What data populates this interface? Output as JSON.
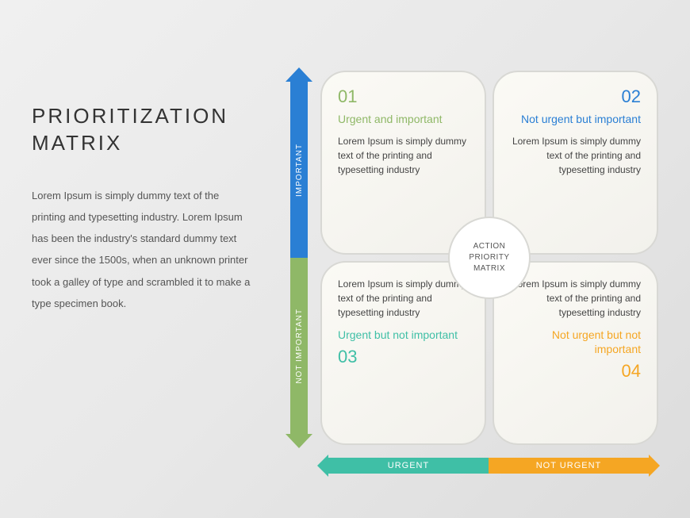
{
  "title": "PRIORITIZATION MATRIX",
  "description": "Lorem Ipsum is simply dummy text of the printing and typesetting industry. Lorem Ipsum has been the industry's standard dummy text ever since the 1500s, when an unknown printer took a galley of type and scrambled it to make a type specimen book.",
  "center_label": "ACTION PRIORITY MATRIX",
  "axes": {
    "y_top": {
      "label": "IMPORTANT",
      "color": "#2a7fd4"
    },
    "y_bottom": {
      "label": "NOT IMPORTANT",
      "color": "#8fb867"
    },
    "x_left": {
      "label": "URGENT",
      "color": "#3fbfa6"
    },
    "x_right": {
      "label": "NOT URGENT",
      "color": "#f5a623"
    }
  },
  "quadrants": [
    {
      "num": "01",
      "title": "Urgent and important",
      "body": "Lorem Ipsum is simply dummy text of the printing and typesetting industry",
      "accent": "#8fb867"
    },
    {
      "num": "02",
      "title": "Not urgent but important",
      "body": "Lorem Ipsum is simply dummy text of the printing and typesetting industry",
      "accent": "#2a7fd4"
    },
    {
      "num": "03",
      "title": "Urgent but not important",
      "body": "Lorem Ipsum is simply dummy text of the printing and typesetting industry",
      "accent": "#3fbfa6"
    },
    {
      "num": "04",
      "title": "Not urgent but not important",
      "body": "Lorem Ipsum is simply dummy text of the printing and typesetting industry",
      "accent": "#f5a623"
    }
  ],
  "style": {
    "card_bg": "#fbfaf5",
    "card_border": "#d8d8d4",
    "card_radius": 32,
    "title_fontsize": 26,
    "body_fontsize": 12
  }
}
